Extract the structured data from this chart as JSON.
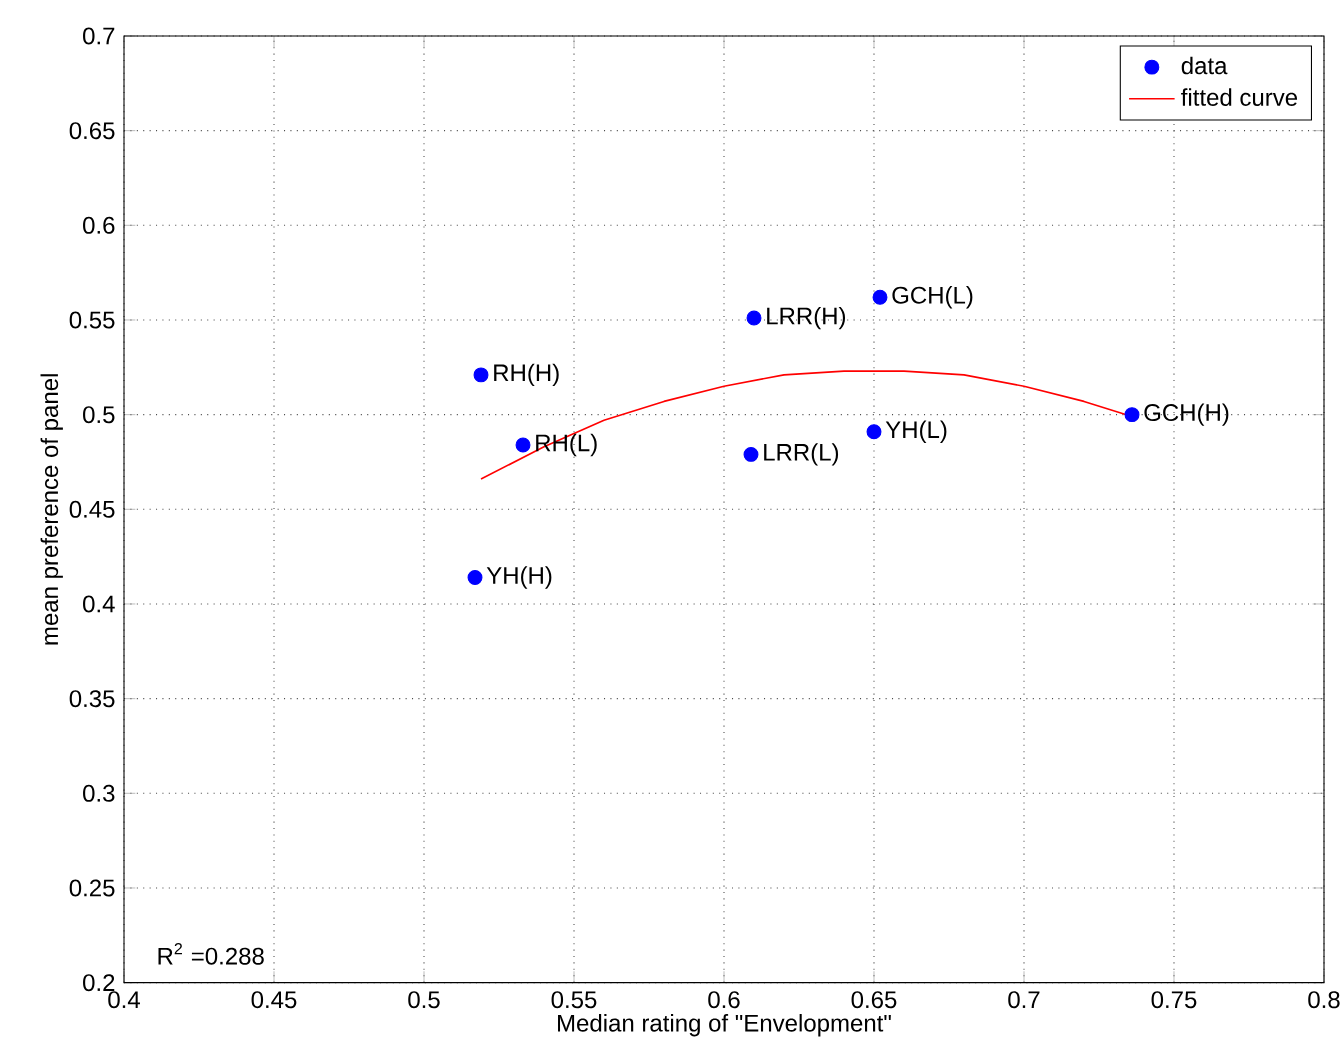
{
  "chart_data": {
    "type": "scatter",
    "xlabel": "Median rating of \"Envelopment\"",
    "ylabel": "mean preference of panel",
    "xlim": [
      0.4,
      0.8
    ],
    "ylim": [
      0.2,
      0.7
    ],
    "xticks": [
      0.4,
      0.45,
      0.5,
      0.55,
      0.6,
      0.65,
      0.7,
      0.75,
      0.8
    ],
    "yticks": [
      0.2,
      0.25,
      0.3,
      0.35,
      0.4,
      0.45,
      0.5,
      0.55,
      0.6,
      0.65,
      0.7
    ],
    "grid": true,
    "legend": "top right",
    "series": [
      {
        "name": "data",
        "color": "#0000ff",
        "marker": "circle",
        "x": [
          0.517,
          0.519,
          0.533,
          0.61,
          0.609,
          0.652,
          0.65,
          0.736
        ],
        "values": [
          0.414,
          0.521,
          0.484,
          0.551,
          0.479,
          0.562,
          0.491,
          0.5
        ]
      },
      {
        "name": "fitted curve",
        "type": "line",
        "color": "#ff0000",
        "marker": "none",
        "x": [
          0.519,
          0.54,
          0.56,
          0.58,
          0.6,
          0.62,
          0.64,
          0.66,
          0.68,
          0.7,
          0.72,
          0.736
        ],
        "values": [
          0.466,
          0.483,
          0.497,
          0.507,
          0.515,
          0.521,
          0.523,
          0.523,
          0.521,
          0.515,
          0.507,
          0.499
        ]
      }
    ],
    "annotations": [
      {
        "text": "YH(H)",
        "x": 0.517,
        "y": 0.414
      },
      {
        "text": "RH(H)",
        "x": 0.519,
        "y": 0.521
      },
      {
        "text": "RH(L)",
        "x": 0.533,
        "y": 0.484
      },
      {
        "text": "LRR(H)",
        "x": 0.61,
        "y": 0.551
      },
      {
        "text": "LRR(L)",
        "x": 0.609,
        "y": 0.479
      },
      {
        "text": "GCH(L)",
        "x": 0.652,
        "y": 0.562
      },
      {
        "text": "YH(L)",
        "x": 0.65,
        "y": 0.491
      },
      {
        "text": "GCH(H)",
        "x": 0.736,
        "y": 0.5
      },
      "R$^{2}$ =0.288"
    ]
  }
}
